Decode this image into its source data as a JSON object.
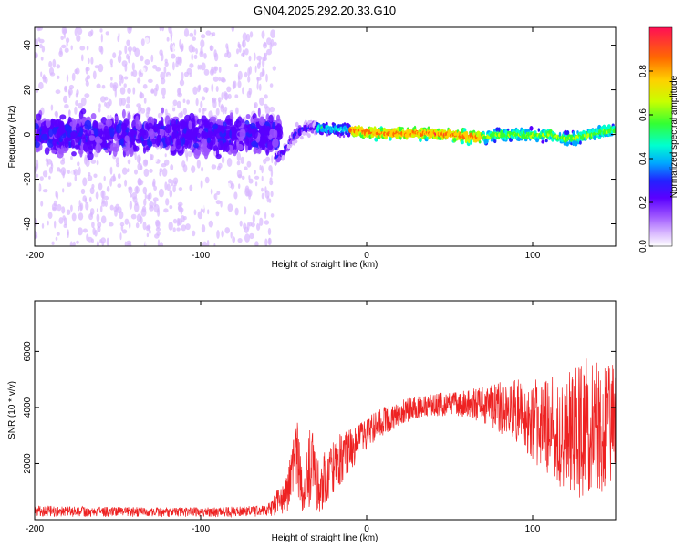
{
  "page_title": "GN04.2025.292.20.33.G10",
  "colors": {
    "snr_line": "#ee2222",
    "axis": "#000000",
    "colormap": [
      "#ffffff",
      "#d9b8ff",
      "#9b52ff",
      "#5a00ff",
      "#2222ff",
      "#00a8ff",
      "#00ffd0",
      "#33ff33",
      "#c8ff00",
      "#ffd000",
      "#ff6a00",
      "#ff0f55"
    ]
  },
  "chart_data": [
    {
      "type": "heatmap",
      "title": "GN04.2025.292.20.33.G10",
      "xlabel": "Height of straight line (km)",
      "ylabel": "Frequency (Hz)",
      "xlim": [
        -200,
        150
      ],
      "ylim": [
        -50,
        48
      ],
      "xticks": [
        -200,
        -100,
        0,
        100
      ],
      "yticks": [
        -40,
        -20,
        0,
        20,
        40
      ],
      "ytick_labels": [
        "-40",
        "-20",
        "0",
        "20",
        "40"
      ],
      "colorbar": {
        "label": "Normalized spectral amplitude",
        "range": [
          0.0,
          1.0
        ],
        "ticks": [
          0.0,
          0.2,
          0.4,
          0.6,
          0.8
        ],
        "tick_labels": [
          "0.0",
          "0.2",
          "0.4",
          "0.6",
          "0.8"
        ]
      },
      "description_points": {
        "ridge_heights_km": [
          -55,
          -50,
          -47,
          -44,
          -40,
          -35,
          -30,
          -20,
          -10,
          0,
          10,
          20,
          30,
          40,
          50,
          60,
          70,
          80,
          90,
          100,
          110,
          120,
          130,
          140,
          150
        ],
        "ridge_frequency_hz": [
          -11,
          -8,
          -4,
          -1,
          2,
          3,
          3,
          2.5,
          2,
          1,
          0.5,
          0.5,
          0.5,
          0.5,
          0,
          -1,
          -1.5,
          0,
          0,
          -0.5,
          0,
          -2,
          -1,
          1,
          2
        ]
      }
    },
    {
      "type": "line",
      "xlabel": "Height of straight line (km)",
      "ylabel": "SNR (10 * v/v)",
      "xlim": [
        -200,
        150
      ],
      "ylim": [
        0,
        7800
      ],
      "xticks": [
        -200,
        -100,
        0,
        100
      ],
      "yticks": [
        2000,
        4000,
        6000
      ],
      "envelope": {
        "x": [
          -200,
          -150,
          -100,
          -60,
          -48,
          -42,
          -38,
          -34,
          -30,
          -22,
          -15,
          -10,
          -5,
          0,
          10,
          20,
          30,
          40,
          60,
          70,
          80,
          90,
          100,
          110,
          120,
          130,
          140,
          150
        ],
        "mean": [
          300,
          280,
          260,
          300,
          900,
          2200,
          800,
          2000,
          1200,
          1800,
          2200,
          2500,
          2800,
          3100,
          3500,
          3800,
          4000,
          4100,
          4150,
          4100,
          4000,
          3900,
          3600,
          3300,
          3100,
          3300,
          3200,
          3600
        ],
        "amplitude": [
          200,
          180,
          170,
          200,
          700,
          1400,
          700,
          1500,
          1200,
          1000,
          900,
          800,
          700,
          600,
          500,
          450,
          400,
          400,
          500,
          650,
          900,
          1200,
          1500,
          1800,
          2100,
          2600,
          2400,
          2000
        ]
      }
    }
  ]
}
